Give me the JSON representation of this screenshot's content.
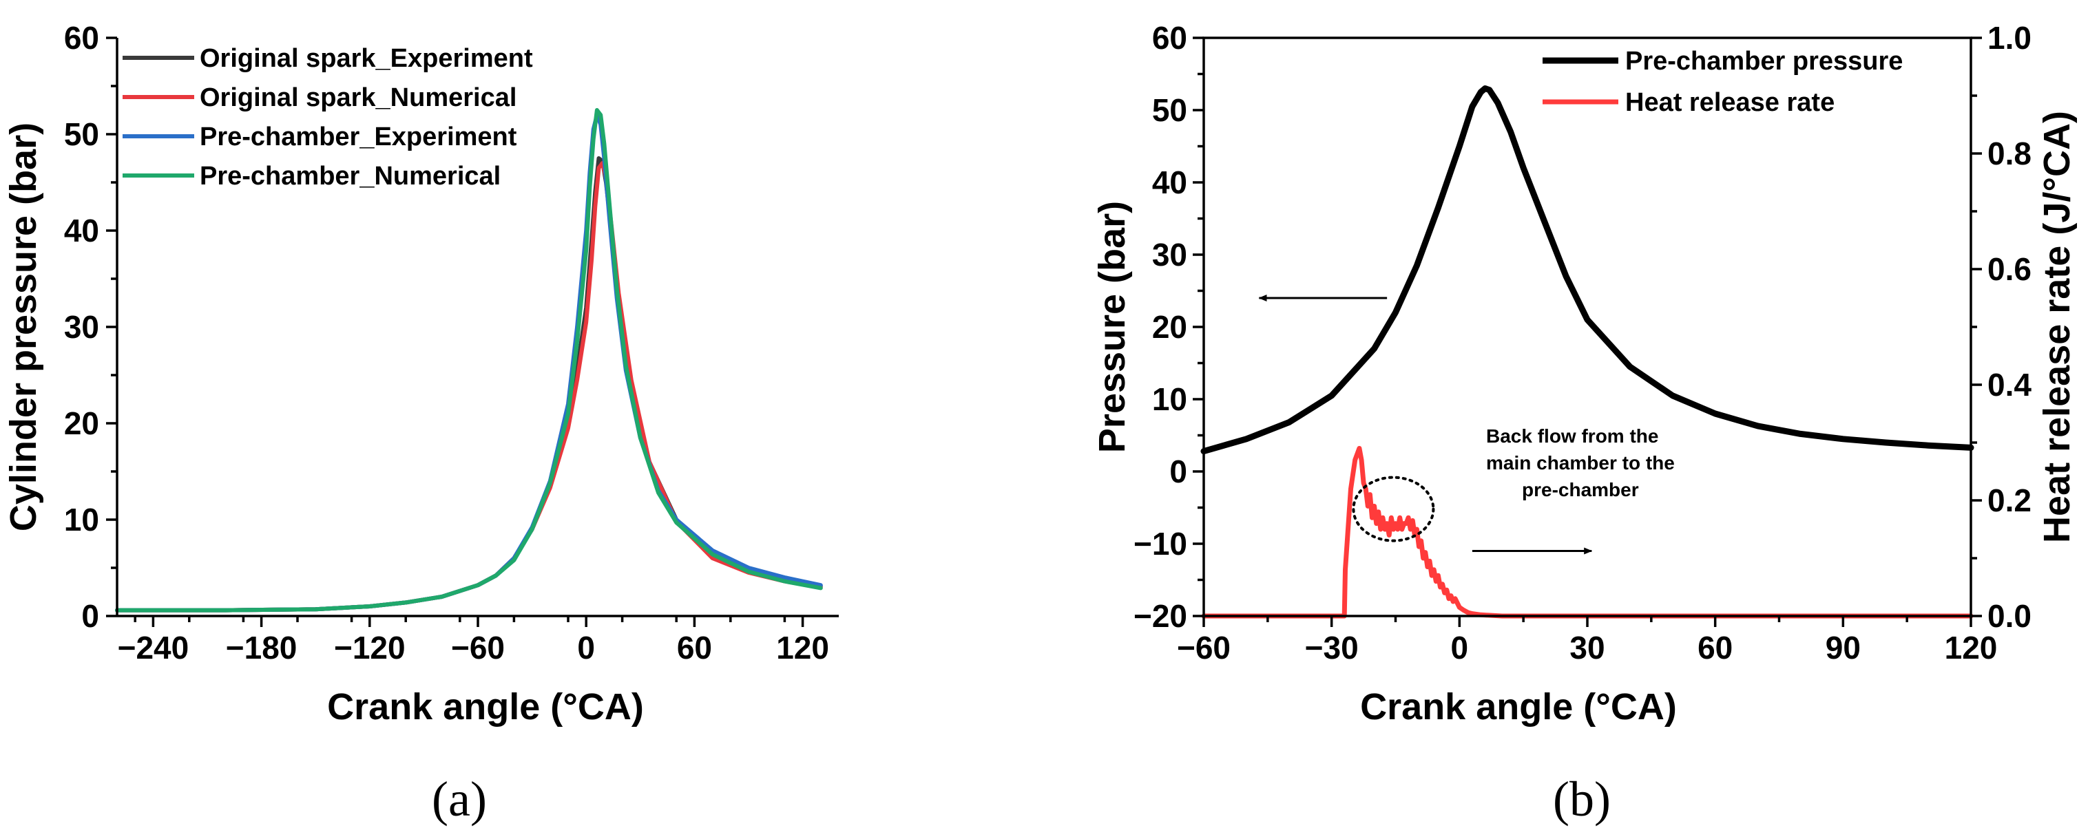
{
  "chart_data": [
    {
      "id": "a",
      "panel_label": "(a)",
      "type": "line",
      "xlabel": "Crank angle (°CA)",
      "ylabel": "Cylinder pressure (bar)",
      "xlim": [
        -260,
        140
      ],
      "ylim": [
        0,
        60
      ],
      "xticks": [
        -240,
        -180,
        -120,
        -60,
        0,
        60,
        120
      ],
      "xtick_labels": [
        "−240",
        "−180",
        "−120",
        "−60",
        "0",
        "60",
        "120"
      ],
      "yticks": [
        0,
        10,
        20,
        30,
        40,
        50,
        60
      ],
      "ytick_labels": [
        "0",
        "10",
        "20",
        "30",
        "40",
        "50",
        "60"
      ],
      "legend_position": "top-left",
      "series": [
        {
          "name": "Original spark_Experiment",
          "color": "#3a3a3a",
          "x": [
            -260,
            -200,
            -150,
            -120,
            -100,
            -80,
            -60,
            -50,
            -40,
            -30,
            -20,
            -10,
            -5,
            0,
            3,
            5,
            7,
            9,
            11,
            14,
            18,
            25,
            35,
            50,
            70,
            90,
            110,
            130
          ],
          "y": [
            0.6,
            0.6,
            0.7,
            1.0,
            1.4,
            2.0,
            3.2,
            4.2,
            6.0,
            9.0,
            13.5,
            20.0,
            25.5,
            32.0,
            39.0,
            44.0,
            47.5,
            47.2,
            45.0,
            40.0,
            33.0,
            24.0,
            16.0,
            10.0,
            6.2,
            4.7,
            3.8,
            3.1
          ]
        },
        {
          "name": "Original spark_Numerical",
          "color": "#e8383d",
          "x": [
            -260,
            -200,
            -150,
            -120,
            -100,
            -80,
            -60,
            -50,
            -40,
            -30,
            -20,
            -10,
            -5,
            0,
            3,
            5,
            7,
            9,
            11,
            14,
            18,
            25,
            35,
            50,
            70,
            90,
            110,
            130
          ],
          "y": [
            0.6,
            0.6,
            0.7,
            1.0,
            1.4,
            2.0,
            3.2,
            4.2,
            6.0,
            9.0,
            13.3,
            19.5,
            24.5,
            30.5,
            37.0,
            42.5,
            46.5,
            47.0,
            45.5,
            40.5,
            33.5,
            24.5,
            16.0,
            9.8,
            6.0,
            4.5,
            3.6,
            3.0
          ]
        },
        {
          "name": "Pre-chamber_Experiment",
          "color": "#2a6fc9",
          "x": [
            -260,
            -200,
            -150,
            -120,
            -100,
            -80,
            -60,
            -50,
            -40,
            -30,
            -20,
            -10,
            -5,
            0,
            2,
            4,
            6,
            8,
            10,
            13,
            17,
            22,
            30,
            40,
            50,
            70,
            90,
            110,
            130
          ],
          "y": [
            0.6,
            0.6,
            0.7,
            1.0,
            1.4,
            2.0,
            3.2,
            4.2,
            6.0,
            9.2,
            14.0,
            22.0,
            30.0,
            40.0,
            46.0,
            50.5,
            52.0,
            51.0,
            47.5,
            41.0,
            33.0,
            25.5,
            18.5,
            13.0,
            10.0,
            6.8,
            5.0,
            4.0,
            3.2
          ]
        },
        {
          "name": "Pre-chamber_Numerical",
          "color": "#1fa86b",
          "x": [
            -260,
            -200,
            -150,
            -120,
            -100,
            -80,
            -60,
            -50,
            -40,
            -30,
            -20,
            -10,
            -5,
            0,
            2,
            4,
            6,
            8,
            10,
            13,
            17,
            22,
            30,
            40,
            50,
            70,
            90,
            110,
            130
          ],
          "y": [
            0.6,
            0.6,
            0.7,
            1.0,
            1.4,
            2.0,
            3.2,
            4.2,
            5.8,
            9.0,
            13.8,
            21.0,
            28.5,
            38.0,
            44.5,
            49.5,
            52.5,
            52.0,
            49.0,
            42.5,
            34.0,
            26.0,
            18.5,
            12.8,
            9.7,
            6.4,
            4.6,
            3.6,
            2.9
          ]
        }
      ]
    },
    {
      "id": "b",
      "panel_label": "(b)",
      "type": "line",
      "xlabel": "Crank angle (°CA)",
      "ylabel": "Pressure (bar)",
      "y2label": "Heat release rate (J/°CA)",
      "xlim": [
        -60,
        120
      ],
      "ylim": [
        -20,
        60
      ],
      "y2lim": [
        0,
        1.0
      ],
      "xticks": [
        -60,
        -30,
        0,
        30,
        60,
        90,
        120
      ],
      "xtick_labels": [
        "−60",
        "−30",
        "0",
        "30",
        "60",
        "90",
        "120"
      ],
      "yticks": [
        -20,
        -10,
        0,
        10,
        20,
        30,
        40,
        50,
        60
      ],
      "ytick_labels": [
        "−20",
        "−10",
        "0",
        "10",
        "20",
        "30",
        "40",
        "50",
        "60"
      ],
      "y2ticks": [
        0.0,
        0.2,
        0.4,
        0.6,
        0.8,
        1.0
      ],
      "y2tick_labels": [
        "0.0",
        "0.2",
        "0.4",
        "0.6",
        "0.8",
        "1.0"
      ],
      "legend_position": "top-right",
      "annotation": "Back flow from the main chamber to the pre-chamber",
      "annotation_lines": [
        "Back flow from the",
        "main chamber to the",
        "pre-chamber"
      ],
      "series": [
        {
          "name": "Pre-chamber pressure",
          "axis": "left",
          "color": "#000000",
          "x": [
            -60,
            -50,
            -40,
            -30,
            -20,
            -15,
            -10,
            -5,
            0,
            3,
            5,
            6,
            7,
            9,
            12,
            15,
            20,
            25,
            30,
            40,
            50,
            60,
            70,
            80,
            90,
            100,
            110,
            120
          ],
          "y": [
            2.8,
            4.5,
            6.8,
            10.5,
            17.0,
            22.0,
            28.5,
            36.5,
            45.0,
            50.5,
            52.5,
            53.0,
            52.8,
            51.0,
            47.0,
            42.0,
            34.5,
            27.0,
            21.0,
            14.5,
            10.5,
            8.0,
            6.3,
            5.2,
            4.5,
            4.0,
            3.6,
            3.3
          ]
        },
        {
          "name": "Heat release rate",
          "axis": "right",
          "color": "#ff3b3b",
          "x": [
            -60,
            -27,
            -26.8,
            -25.5,
            -24.5,
            -23.5,
            -23,
            -22.5,
            -22,
            -21.5,
            -21,
            -20.5,
            -20,
            -19.5,
            -19,
            -18.5,
            -18,
            -17.5,
            -17,
            -16.5,
            -16,
            -15.5,
            -15,
            -14.5,
            -14,
            -13.5,
            -13,
            -12.5,
            -12,
            -11.5,
            -11,
            -10.5,
            -10,
            -9.5,
            -9,
            -8.5,
            -8,
            -7.5,
            -7,
            -6.5,
            -6,
            -5.5,
            -5,
            -4.5,
            -4,
            -3.5,
            -3,
            -2.5,
            -2,
            -1.5,
            -1,
            0,
            1,
            2,
            3,
            5,
            10,
            20,
            40,
            60,
            90,
            120
          ],
          "y": [
            0.0,
            0.0,
            0.08,
            0.22,
            0.27,
            0.29,
            0.27,
            0.23,
            0.22,
            0.19,
            0.21,
            0.17,
            0.19,
            0.16,
            0.18,
            0.15,
            0.17,
            0.15,
            0.16,
            0.14,
            0.17,
            0.15,
            0.16,
            0.15,
            0.17,
            0.15,
            0.16,
            0.16,
            0.17,
            0.15,
            0.165,
            0.14,
            0.15,
            0.12,
            0.13,
            0.1,
            0.11,
            0.085,
            0.095,
            0.07,
            0.08,
            0.06,
            0.07,
            0.05,
            0.055,
            0.04,
            0.045,
            0.03,
            0.035,
            0.025,
            0.03,
            0.015,
            0.01,
            0.006,
            0.004,
            0.002,
            0.0,
            0.0,
            0.0,
            0.0,
            0.0,
            0.0
          ]
        }
      ]
    }
  ]
}
